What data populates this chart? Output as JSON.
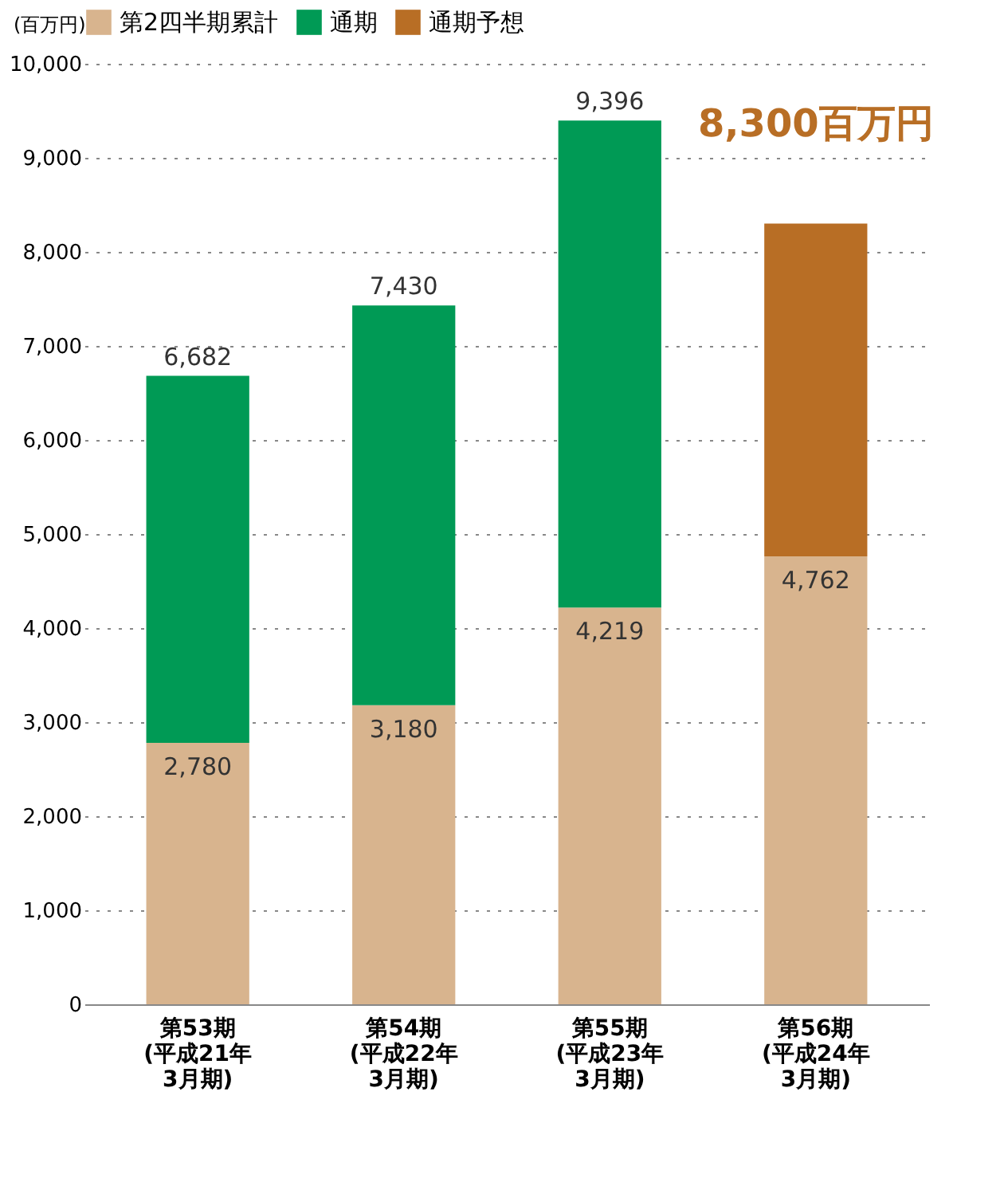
{
  "chart_data": {
    "type": "bar",
    "stacked": true,
    "ylabel": "(百万円)",
    "categories": [
      "第53期 (平成21年 3月期)",
      "第54期 (平成22年 3月期)",
      "第55期 (平成23年 3月期)",
      "第56期 (平成24年 3月期)"
    ],
    "series": [
      {
        "name": "第2四半期累計",
        "color": "#d8b48e",
        "values": [
          2780,
          3180,
          4219,
          4762
        ],
        "value_labels": [
          "2,780",
          "3,180",
          "4,219",
          "4,762"
        ]
      },
      {
        "name": "通期",
        "color": "#009a55",
        "values": [
          3902,
          4250,
          5177,
          null
        ]
      },
      {
        "name": "通期予想",
        "color": "#b86e25",
        "values": [
          null,
          null,
          null,
          3538
        ]
      }
    ],
    "totals": [
      "6,682",
      "7,430",
      "9,396",
      null
    ],
    "annotations": [
      {
        "text": "8,300百万円",
        "x": "第56期 (平成24年 3月期)",
        "y": 8300
      }
    ],
    "ylim": [
      0,
      10000
    ],
    "yticks": [
      0,
      {
        "value": 1000,
        "label": "1,000"
      },
      {
        "value": 2000,
        "label": "2,000"
      },
      {
        "value": 3000,
        "label": "3,000"
      },
      {
        "value": 4000,
        "label": "4,000"
      },
      {
        "value": 5000,
        "label": "5,000"
      },
      {
        "value": 6000,
        "label": "6,000"
      },
      {
        "value": 7000,
        "label": "7,000"
      },
      {
        "value": 8000,
        "label": "8,000"
      },
      {
        "value": 9000,
        "label": "9,000"
      },
      {
        "value": 10000,
        "label": "10,000"
      }
    ],
    "grid": "y",
    "legend": "top"
  }
}
